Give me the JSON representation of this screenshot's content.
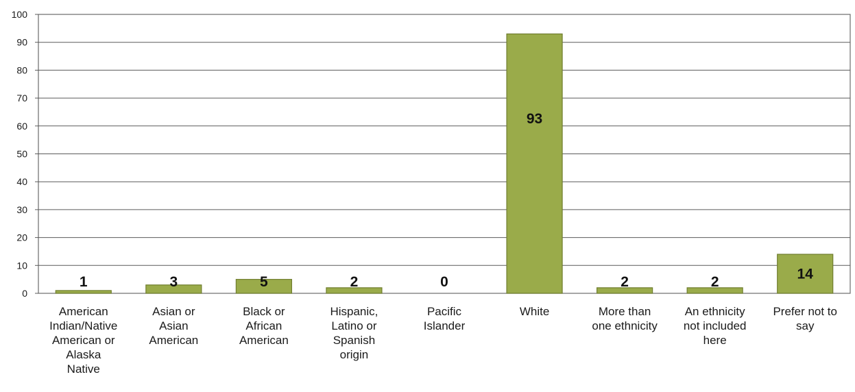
{
  "chart_data": {
    "type": "bar",
    "title": "",
    "xlabel": "",
    "ylabel": "",
    "ylim": [
      0,
      100
    ],
    "yticks": [
      0,
      10,
      20,
      30,
      40,
      50,
      60,
      70,
      80,
      90,
      100
    ],
    "grid": true,
    "legend": "none",
    "bar_color": "#9aab4a",
    "bar_edge_color": "#6f7d2e",
    "categories": [
      "American Indian/Native American or Alaska Native",
      "Asian or Asian American",
      "Black or African American",
      "Hispanic, Latino or Spanish origin",
      "Pacific Islander",
      "White",
      "More than one ethnicity",
      "An ethnicity not included here",
      "Prefer not to say"
    ],
    "category_lines": [
      [
        "American",
        "Indian/Native",
        "American or",
        "Alaska",
        "Native"
      ],
      [
        "Asian or",
        "Asian",
        "American"
      ],
      [
        "Black or",
        "African",
        "American"
      ],
      [
        "Hispanic,",
        "Latino or",
        "Spanish",
        "origin"
      ],
      [
        "Pacific",
        "Islander"
      ],
      [
        "White"
      ],
      [
        "More than",
        "one ethnicity"
      ],
      [
        "An ethnicity",
        "not included",
        "here"
      ],
      [
        "Prefer not to",
        "say"
      ]
    ],
    "values": [
      1,
      3,
      5,
      2,
      0,
      93,
      2,
      2,
      14
    ],
    "data_labels": [
      "1",
      "3",
      "5",
      "2",
      "0",
      "93",
      "2",
      "2",
      "14"
    ]
  }
}
